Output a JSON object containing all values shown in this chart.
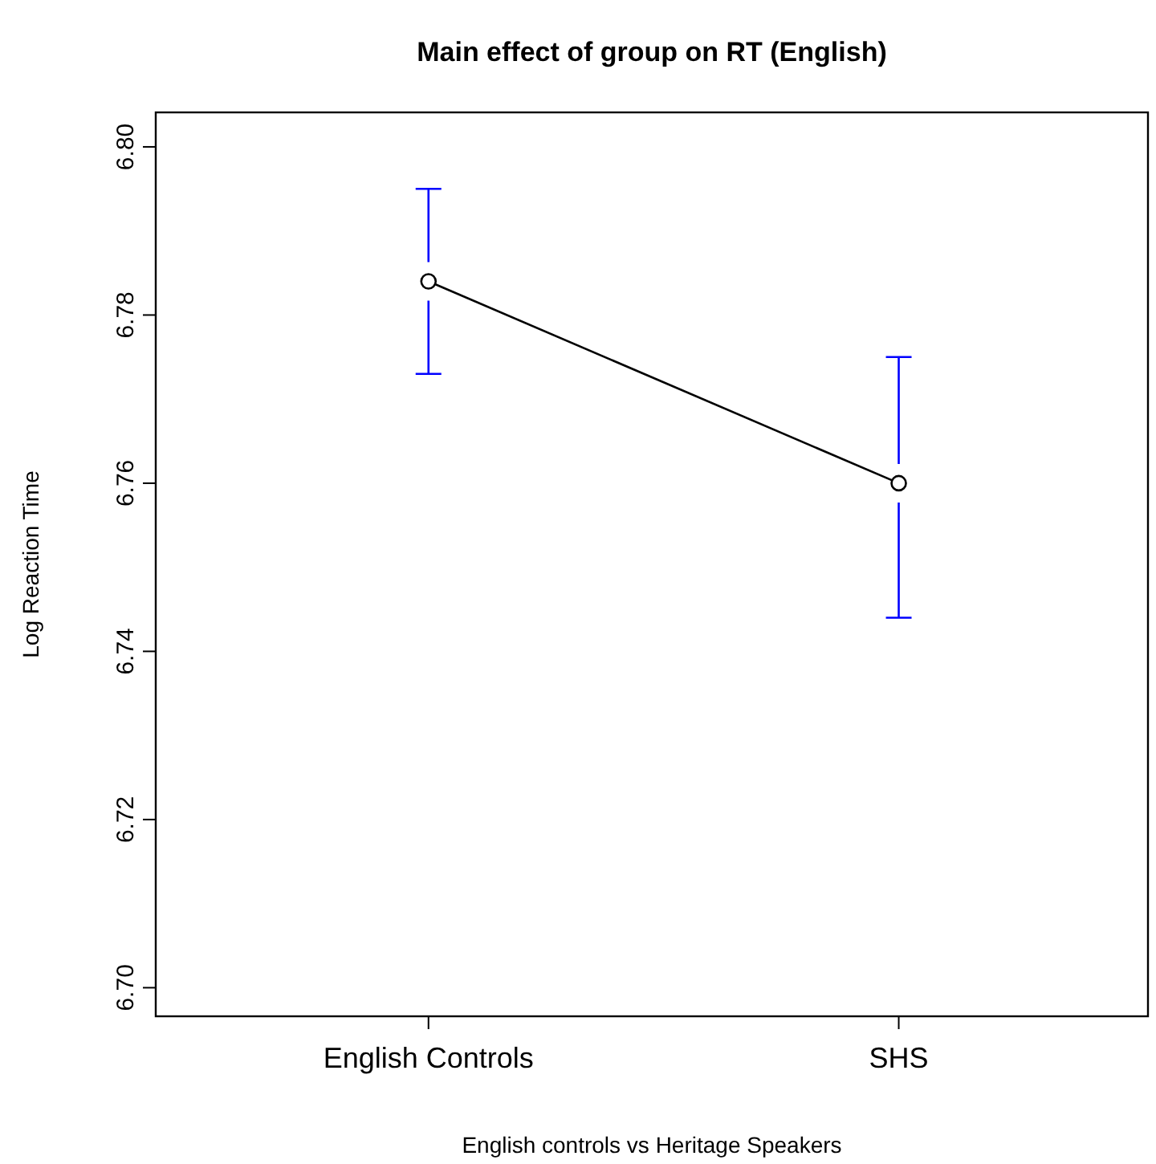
{
  "chart_data": {
    "type": "line",
    "title": "Main effect of group on RT (English)",
    "xlabel": "English controls vs Heritage Speakers",
    "ylabel": "Log Reaction Time",
    "categories": [
      "English Controls",
      "SHS"
    ],
    "series": [
      {
        "color": "#000000",
        "values": [
          6.784,
          6.76
        ],
        "errors": [
          [
            6.773,
            6.795
          ],
          [
            6.744,
            6.775
          ]
        ]
      }
    ],
    "ylim": [
      6.6966,
      6.8041
    ],
    "yticks": [
      {
        "value": 6.7,
        "label": "6.70"
      },
      6.72,
      6.74,
      6.76,
      6.78,
      {
        "value": 6.8,
        "label": "6.80"
      }
    ],
    "grid": false,
    "marker": "circle",
    "line_style": "solid"
  }
}
